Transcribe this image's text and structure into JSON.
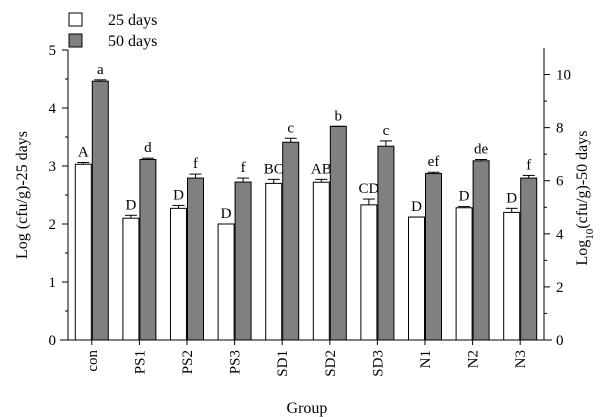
{
  "chart_data": {
    "type": "bar",
    "xlabel": "Group",
    "ylabel_left": "Log (cfu/g)-25 days",
    "ylabel_right": "Log10(cfu/g)-50 days",
    "ylabel_right_parts": {
      "pre": "Log",
      "sub": "10",
      "post": "(cfu/g)-50 days"
    },
    "ylim_left": [
      0,
      5
    ],
    "ylim_right": [
      0,
      11
    ],
    "yticks_left": [
      "0",
      "1",
      "2",
      "3",
      "4",
      "5"
    ],
    "yticks_right": [
      "0",
      "2",
      "4",
      "6",
      "8",
      "10"
    ],
    "legend_position": "top-left",
    "categories": [
      "con",
      "PS1",
      "PS2",
      "PS3",
      "SD1",
      "SD2",
      "SD3",
      "N1",
      "N2",
      "N3"
    ],
    "series": [
      {
        "name": "25 days",
        "axis": "left",
        "color": "#ffffff",
        "values": [
          3.03,
          2.1,
          2.27,
          2.0,
          2.7,
          2.72,
          2.33,
          2.12,
          2.28,
          2.2
        ],
        "errors": [
          0.03,
          0.05,
          0.05,
          0.0,
          0.07,
          0.05,
          0.1,
          0.0,
          0.02,
          0.07
        ],
        "letters": [
          "A",
          "D",
          "D",
          "D",
          "BC",
          "AB",
          "CD",
          "D",
          "D",
          "D"
        ]
      },
      {
        "name": "50 days",
        "axis": "right",
        "color": "#808080",
        "values": [
          9.75,
          6.8,
          6.1,
          5.95,
          7.45,
          8.05,
          7.3,
          6.27,
          6.75,
          6.1
        ],
        "errors": [
          0.05,
          0.05,
          0.15,
          0.15,
          0.15,
          0.0,
          0.2,
          0.05,
          0.05,
          0.1
        ],
        "letters": [
          "a",
          "d",
          "f",
          "f",
          "c",
          "b",
          "c",
          "ef",
          "de",
          "f"
        ]
      }
    ]
  }
}
